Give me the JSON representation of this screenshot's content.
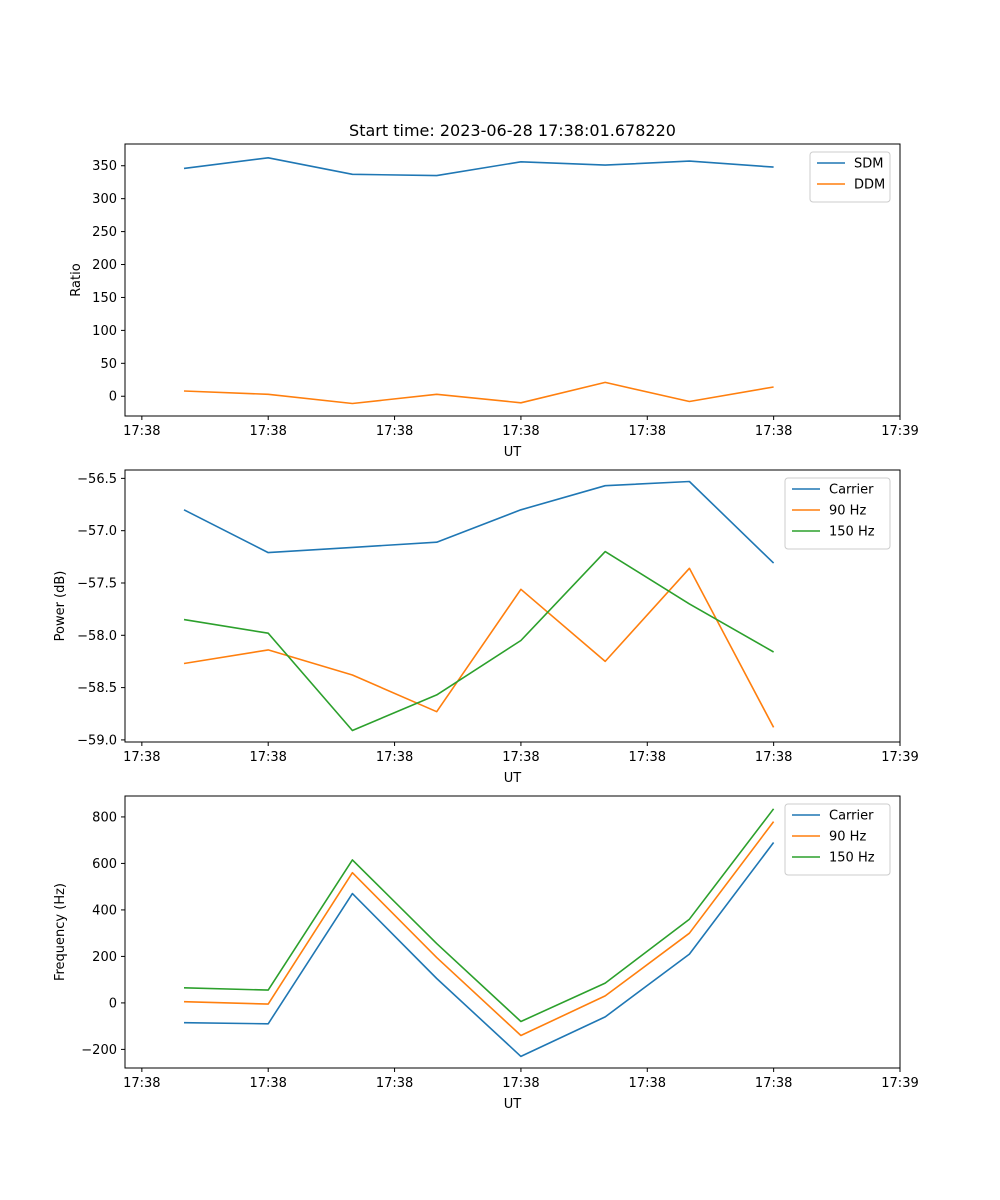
{
  "figure": {
    "title": "Start time: 2023-06-28 17:38:01.678220"
  },
  "colors": {
    "blue": "#1f77b4",
    "orange": "#ff7f0e",
    "green": "#2ca02c"
  },
  "chart_data": [
    {
      "type": "line",
      "title": "Start time: 2023-06-28 17:38:01.678220",
      "xlabel": "UT",
      "ylabel": "Ratio",
      "x": [
        1,
        2,
        3,
        4,
        5,
        6,
        7,
        8
      ],
      "xlim": [
        0.3,
        9.5
      ],
      "x_ticks": [
        {
          "value": 0.5,
          "label": "17:38"
        },
        {
          "value": 2.0,
          "label": "17:38"
        },
        {
          "value": 3.5,
          "label": "17:38"
        },
        {
          "value": 5.0,
          "label": "17:38"
        },
        {
          "value": 6.5,
          "label": "17:38"
        },
        {
          "value": 8.0,
          "label": "17:38"
        },
        {
          "value": 9.5,
          "label": "17:39"
        }
      ],
      "ylim": [
        -30,
        383
      ],
      "y_ticks": [
        0,
        50,
        100,
        150,
        200,
        250,
        300,
        350
      ],
      "y_tick_labels": [
        "0",
        "50",
        "100",
        "150",
        "200",
        "250",
        "300",
        "350"
      ],
      "grid": false,
      "legend_position": "upper right",
      "series": [
        {
          "name": "SDM",
          "color": "#1f77b4",
          "values": [
            346,
            362,
            337,
            335,
            356,
            351,
            357,
            348
          ]
        },
        {
          "name": "DDM",
          "color": "#ff7f0e",
          "values": [
            8,
            3,
            -11,
            3,
            -10,
            21,
            -8,
            14
          ]
        }
      ]
    },
    {
      "type": "line",
      "xlabel": "UT",
      "ylabel": "Power (dB)",
      "x": [
        1,
        2,
        3,
        4,
        5,
        6,
        7,
        8
      ],
      "xlim": [
        0.3,
        9.5
      ],
      "x_ticks": [
        {
          "value": 0.5,
          "label": "17:38"
        },
        {
          "value": 2.0,
          "label": "17:38"
        },
        {
          "value": 3.5,
          "label": "17:38"
        },
        {
          "value": 5.0,
          "label": "17:38"
        },
        {
          "value": 6.5,
          "label": "17:38"
        },
        {
          "value": 8.0,
          "label": "17:38"
        },
        {
          "value": 9.5,
          "label": "17:39"
        }
      ],
      "ylim": [
        -59.02,
        -56.42
      ],
      "y_ticks": [
        -59.0,
        -58.5,
        -58.0,
        -57.5,
        -57.0,
        -56.5
      ],
      "y_tick_labels": [
        "−59.0",
        "−58.5",
        "−58.0",
        "−57.5",
        "−57.0",
        "−56.5"
      ],
      "grid": false,
      "legend_position": "upper right",
      "series": [
        {
          "name": "Carrier",
          "color": "#1f77b4",
          "values": [
            -56.8,
            -57.21,
            -57.16,
            -57.11,
            -56.8,
            -56.57,
            -56.53,
            -57.31
          ]
        },
        {
          "name": "90 Hz",
          "color": "#ff7f0e",
          "values": [
            -58.27,
            -58.14,
            -58.38,
            -58.73,
            -57.56,
            -58.25,
            -57.36,
            -58.88
          ]
        },
        {
          "name": "150 Hz",
          "color": "#2ca02c",
          "values": [
            -57.85,
            -57.98,
            -58.91,
            -58.57,
            -58.05,
            -57.2,
            -57.7,
            -58.16
          ]
        }
      ]
    },
    {
      "type": "line",
      "xlabel": "UT",
      "ylabel": "Frequency (Hz)",
      "x": [
        1,
        2,
        3,
        4,
        5,
        6,
        7,
        8
      ],
      "xlim": [
        0.3,
        9.5
      ],
      "x_ticks": [
        {
          "value": 0.5,
          "label": "17:38"
        },
        {
          "value": 2.0,
          "label": "17:38"
        },
        {
          "value": 3.5,
          "label": "17:38"
        },
        {
          "value": 5.0,
          "label": "17:38"
        },
        {
          "value": 6.5,
          "label": "17:38"
        },
        {
          "value": 8.0,
          "label": "17:38"
        },
        {
          "value": 9.5,
          "label": "17:39"
        }
      ],
      "ylim": [
        -280,
        890
      ],
      "y_ticks": [
        -200,
        0,
        200,
        400,
        600,
        800
      ],
      "y_tick_labels": [
        "−200",
        "0",
        "200",
        "400",
        "600",
        "800"
      ],
      "grid": false,
      "legend_position": "upper right",
      "series": [
        {
          "name": "Carrier",
          "color": "#1f77b4",
          "values": [
            -85,
            -90,
            470,
            105,
            -230,
            -60,
            210,
            690
          ]
        },
        {
          "name": "90 Hz",
          "color": "#ff7f0e",
          "values": [
            5,
            -5,
            560,
            195,
            -140,
            30,
            300,
            780
          ]
        },
        {
          "name": "150 Hz",
          "color": "#2ca02c",
          "values": [
            65,
            55,
            615,
            255,
            -80,
            85,
            360,
            835
          ]
        }
      ]
    }
  ]
}
